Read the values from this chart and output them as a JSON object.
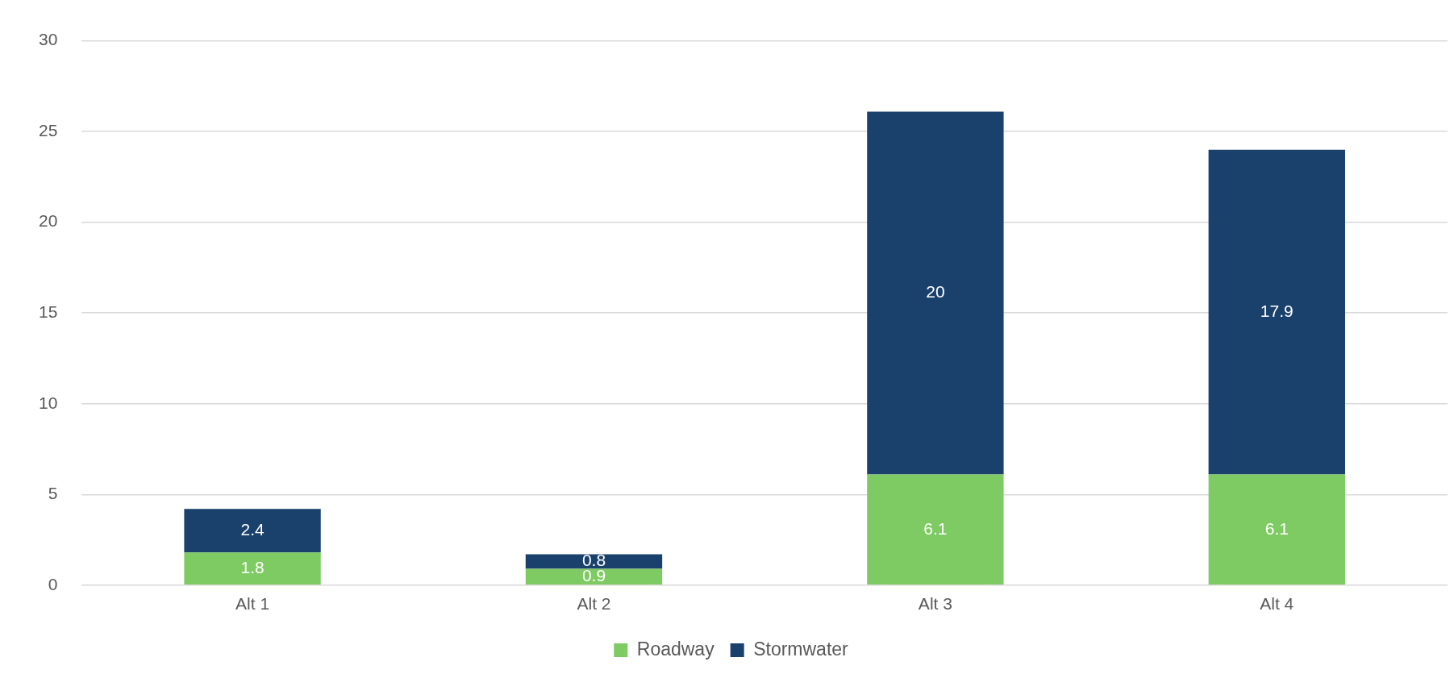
{
  "chart_data": {
    "type": "bar",
    "stacked": true,
    "categories": [
      "Alt 1",
      "Alt 2",
      "Alt 3",
      "Alt 4"
    ],
    "series": [
      {
        "name": "Roadway",
        "color": "#7ecb63",
        "values": [
          1.8,
          0.9,
          6.1,
          6.1
        ]
      },
      {
        "name": "Stormwater",
        "color": "#1a406c",
        "values": [
          2.4,
          0.8,
          20,
          17.9
        ]
      }
    ],
    "ylim": [
      0,
      30
    ],
    "yticks": [
      0,
      5,
      10,
      15,
      20,
      25,
      30
    ],
    "grid": "y",
    "legend": "bottom",
    "data_labels": true
  }
}
